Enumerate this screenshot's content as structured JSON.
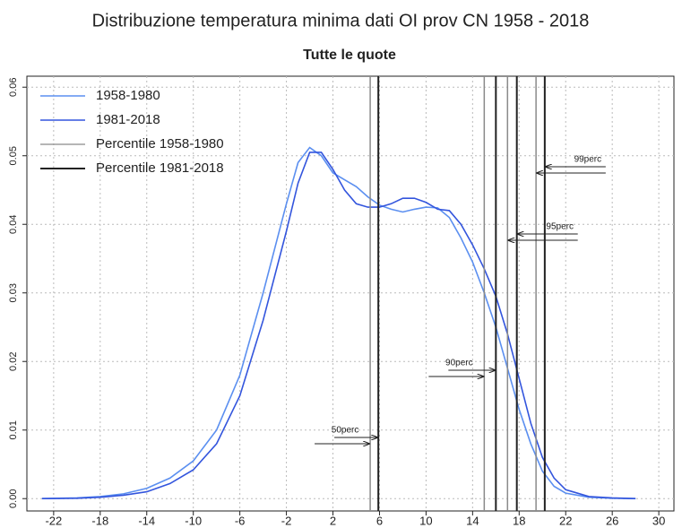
{
  "chart_data": {
    "type": "line",
    "title": "Distribuzione temperatura minima dati OI prov CN 1958 - 2018",
    "subtitle": "Tutte le quote",
    "x": [
      -23,
      -20,
      -18,
      -16,
      -14,
      -12,
      -10,
      -8,
      -6,
      -4,
      -2,
      -1,
      0,
      1,
      2,
      3,
      4,
      5,
      6,
      7,
      8,
      9,
      10,
      11,
      12,
      13,
      14,
      15,
      16,
      17,
      18,
      19,
      20,
      21,
      22,
      24,
      26,
      28
    ],
    "series": [
      {
        "name": "1958-1980",
        "color": "#5b8ff0",
        "values": [
          0,
          0.0001,
          0.0003,
          0.0007,
          0.0015,
          0.003,
          0.0055,
          0.01,
          0.018,
          0.03,
          0.043,
          0.049,
          0.0512,
          0.05,
          0.0475,
          0.0465,
          0.0455,
          0.044,
          0.0428,
          0.0422,
          0.0418,
          0.0422,
          0.0425,
          0.0424,
          0.041,
          0.038,
          0.0345,
          0.03,
          0.025,
          0.019,
          0.013,
          0.008,
          0.004,
          0.0018,
          0.0008,
          0.0002,
          5e-05,
          0
        ]
      },
      {
        "name": "1981-2018",
        "color": "#3355dd",
        "values": [
          0,
          5e-05,
          0.0002,
          0.0005,
          0.001,
          0.0022,
          0.0042,
          0.008,
          0.015,
          0.026,
          0.039,
          0.046,
          0.0505,
          0.0505,
          0.048,
          0.045,
          0.043,
          0.0425,
          0.0425,
          0.043,
          0.0438,
          0.0438,
          0.0432,
          0.0422,
          0.042,
          0.04,
          0.037,
          0.0335,
          0.0295,
          0.024,
          0.0175,
          0.011,
          0.006,
          0.003,
          0.0013,
          0.0003,
          0.0001,
          0
        ]
      }
    ],
    "percentiles": [
      {
        "name": "Percentile 1958-1980",
        "color": "#8a8a8a",
        "values": [
          5.2,
          15.0,
          17.0,
          19.45
        ]
      },
      {
        "name": "Percentile 1981-2018",
        "color": "#222222",
        "values": [
          5.9,
          16.0,
          17.8,
          20.2
        ]
      }
    ],
    "percentile_labels": [
      "50perc",
      "90perc",
      "95perc",
      "99perc"
    ],
    "xlim": [
      -24.3,
      31.3
    ],
    "xticks": [
      -22,
      -18,
      -14,
      -10,
      -6,
      -2,
      2,
      6,
      10,
      14,
      18,
      22,
      26,
      30
    ],
    "ylim": [
      -0.0018,
      0.0616
    ],
    "yticks": [
      {
        "value": 0,
        "label": "0.00"
      },
      0.01,
      0.02,
      0.03,
      0.04,
      0.05,
      0.06
    ],
    "grid": true,
    "legend": "top-left"
  }
}
